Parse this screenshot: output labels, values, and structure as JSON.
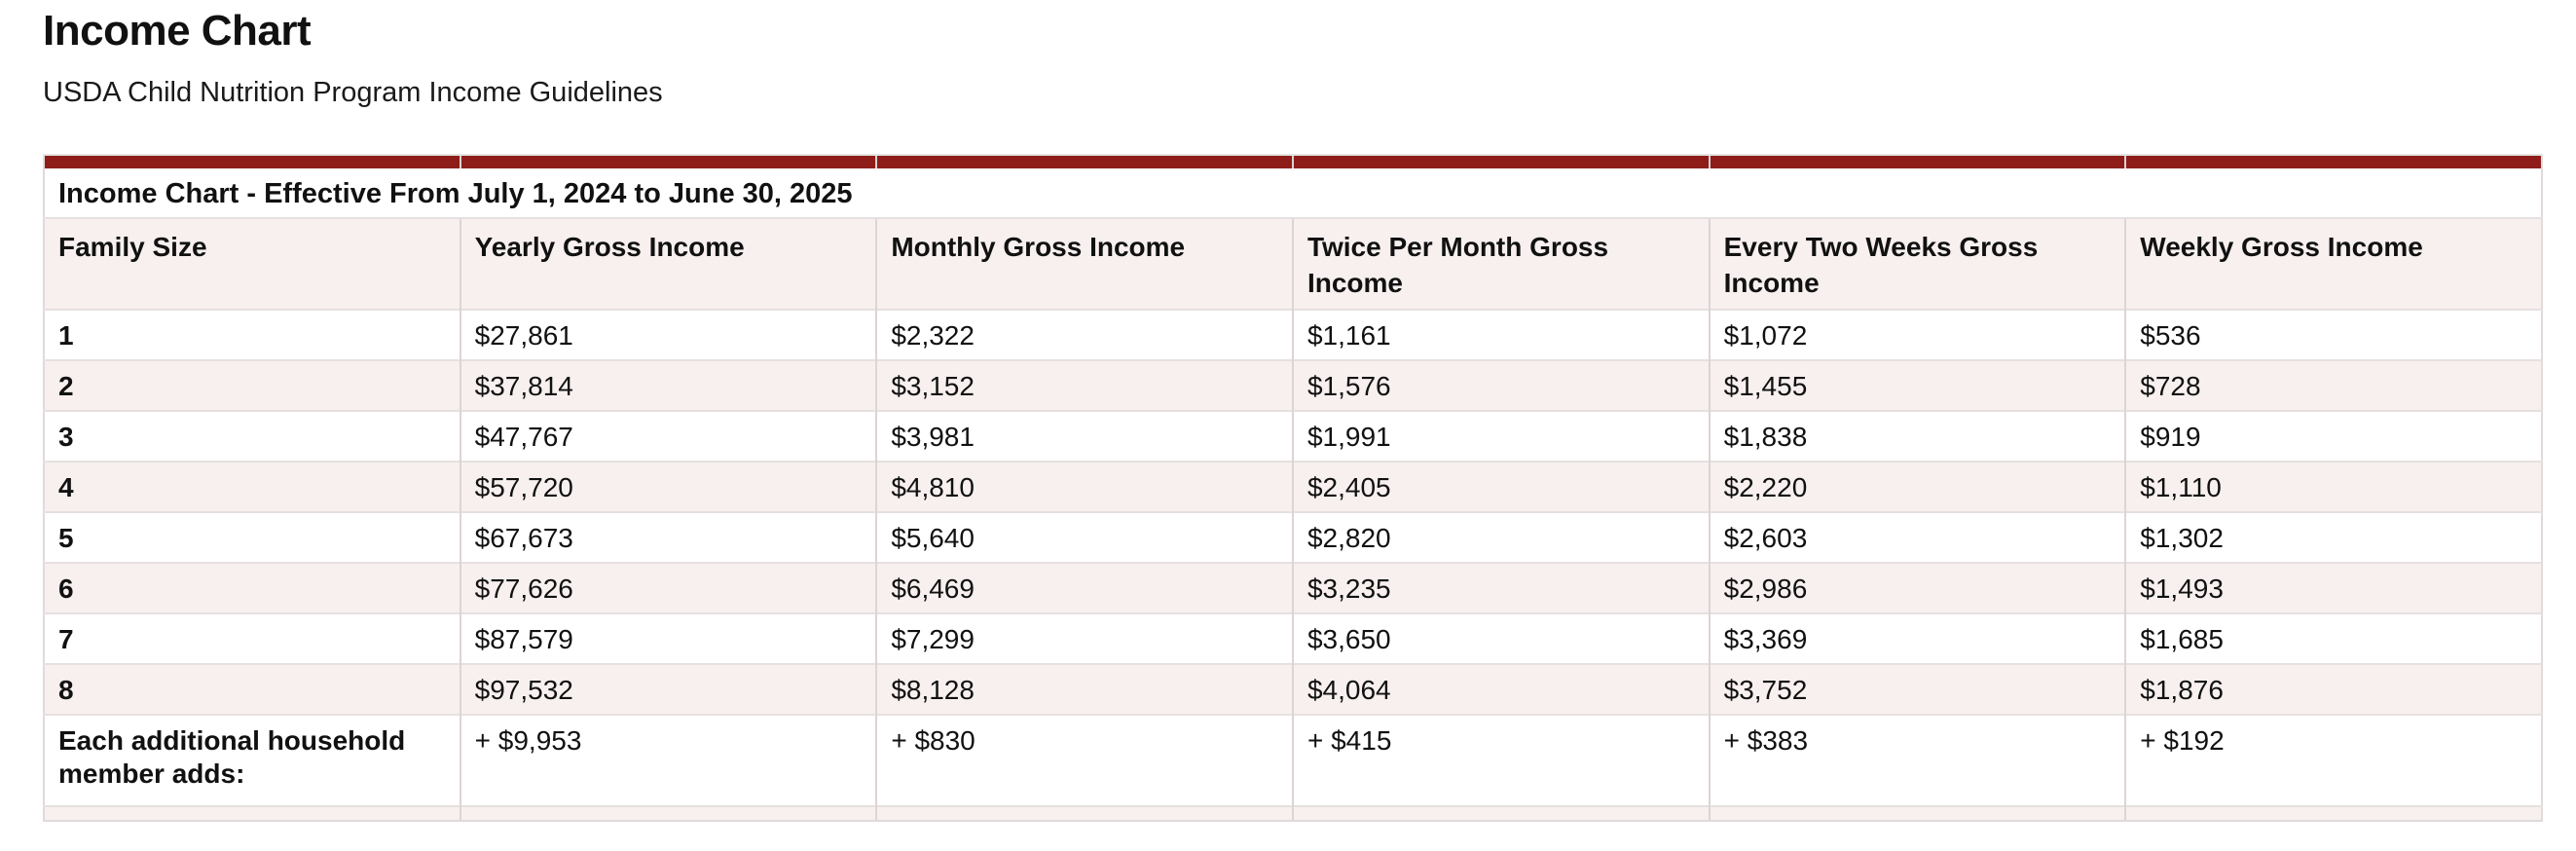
{
  "header": {
    "title": "Income Chart",
    "subtitle": "USDA Child Nutrition Program Income Guidelines"
  },
  "table": {
    "caption": "Income Chart - Effective From July 1, 2024 to June 30, 2025",
    "columns": [
      "Family Size",
      "Yearly Gross Income",
      "Monthly Gross Income",
      "Twice Per Month Gross Income",
      "Every Two Weeks Gross Income",
      "Weekly Gross Income"
    ],
    "rows": [
      [
        "1",
        "$27,861",
        "$2,322",
        "$1,161",
        "$1,072",
        "$536"
      ],
      [
        "2",
        "$37,814",
        "$3,152",
        "$1,576",
        "$1,455",
        "$728"
      ],
      [
        "3",
        "$47,767",
        "$3,981",
        "$1,991",
        "$1,838",
        "$919"
      ],
      [
        "4",
        "$57,720",
        "$4,810",
        "$2,405",
        "$2,220",
        "$1,110"
      ],
      [
        "5",
        "$67,673",
        "$5,640",
        "$2,820",
        "$2,603",
        "$1,302"
      ],
      [
        "6",
        "$77,626",
        "$6,469",
        "$3,235",
        "$2,986",
        "$1,493"
      ],
      [
        "7",
        "$87,579",
        "$7,299",
        "$3,650",
        "$3,369",
        "$1,685"
      ],
      [
        "8",
        "$97,532",
        "$8,128",
        "$4,064",
        "$3,752",
        "$1,876"
      ],
      [
        "Each additional household member adds:",
        "+ $9,953",
        "+ $830",
        "+ $415",
        "+ $383",
        "+ $192"
      ]
    ],
    "colors": {
      "accent_bar": "#8e1d1a",
      "row_alt_background": "#f7f0ef",
      "border": "#ddd4d4",
      "text": "#111111"
    }
  }
}
